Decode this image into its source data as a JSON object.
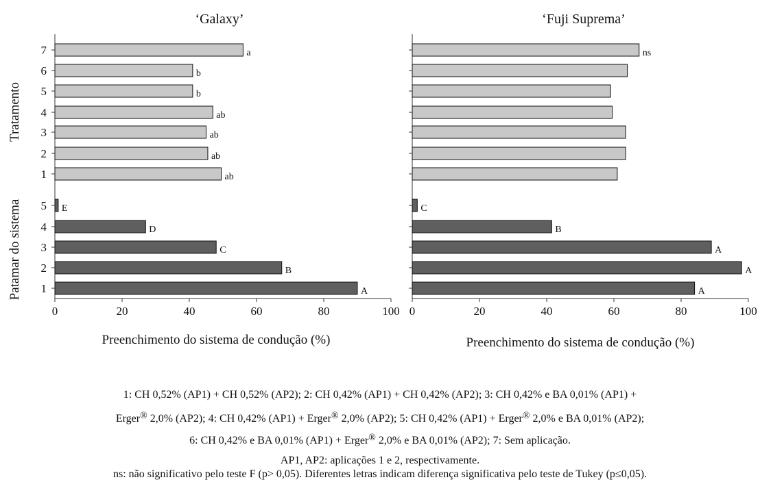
{
  "chart_data": [
    {
      "type": "bar",
      "orientation": "horizontal",
      "title": "‘Galaxy’",
      "xlabel": "Preenchimento do sistema de condução (%)",
      "xlim": [
        0,
        100
      ],
      "xticks": [
        "0",
        "20",
        "40",
        "60",
        "80",
        "100"
      ],
      "groups": [
        {
          "name": "Tratamento",
          "color": "#c8c8c8",
          "categories": [
            "7",
            "6",
            "5",
            "4",
            "3",
            "2",
            "1"
          ],
          "values": [
            56,
            41,
            41,
            47,
            45,
            45.5,
            49.5
          ],
          "labels": [
            "a",
            "b",
            "b",
            "ab",
            "ab",
            "ab",
            "ab"
          ]
        },
        {
          "name": "Patamar do sistema",
          "color": "#5f5f5f",
          "categories": [
            "5",
            "4",
            "3",
            "2",
            "1"
          ],
          "values": [
            1,
            27,
            48,
            67.5,
            90
          ],
          "labels": [
            "E",
            "D",
            "C",
            "B",
            "A"
          ]
        }
      ]
    },
    {
      "type": "bar",
      "orientation": "horizontal",
      "title": "‘Fuji Suprema’",
      "xlabel": "Preenchimento do sistema de condução (%)",
      "xlim": [
        0,
        100
      ],
      "xticks": [
        "0",
        "20",
        "40",
        "60",
        "80",
        "100"
      ],
      "groups": [
        {
          "name": "Tratamento",
          "color": "#c8c8c8",
          "categories": [
            "7",
            "6",
            "5",
            "4",
            "3",
            "2",
            "1"
          ],
          "values": [
            67.5,
            64,
            59,
            59.5,
            63.5,
            63.5,
            61
          ],
          "labels": [
            "ns",
            "",
            "",
            "",
            "",
            "",
            ""
          ]
        },
        {
          "name": "Patamar do sistema",
          "color": "#5f5f5f",
          "categories": [
            "5",
            "4",
            "3",
            "2",
            "1"
          ],
          "values": [
            1.5,
            41.5,
            89,
            98,
            84
          ],
          "labels": [
            "C",
            "B",
            "A",
            "A",
            "A"
          ]
        }
      ]
    }
  ],
  "caption": {
    "line1": "1: CH 0,52% (AP1) + CH 0,52% (AP2); 2: CH 0,42% (AP1) + CH 0,42% (AP2); 3: CH 0,42% e BA 0,01% (AP1) +",
    "line2_a": "Erger",
    "line2_b": " 2,0% (AP2); 4: CH 0,42%  (AP1) + Erger",
    "line2_c": " 2,0% (AP2); 5: CH 0,42%  (AP1) + Erger",
    "line2_d": " 2,0% e  BA 0,01% (AP2);",
    "line3_a": "6: CH 0,42%  e BA 0,01% (AP1) + Erger",
    "line3_b": " 2,0% e  BA 0,01% (AP2); 7: Sem aplicação.",
    "reg": "®",
    "line4": "AP1, AP2: aplicações 1 e 2, respectivamente.",
    "line5": "ns: não significativo pelo teste F (p> 0,05). Diferentes letras indicam diferença significativa pelo teste de Tukey (p≤0,05)."
  }
}
